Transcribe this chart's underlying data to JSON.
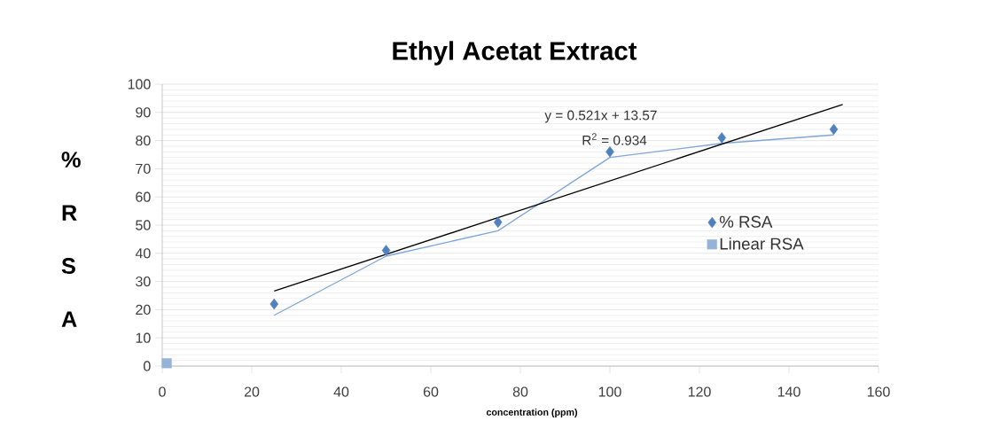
{
  "chart_data": {
    "type": "scatter",
    "title": "Ethyl Acetat Extract",
    "xlabel": "concentration (ppm)",
    "ylabel": "% R S A",
    "series": [
      {
        "name": "% RSA",
        "marker": "diamond",
        "color": "#4f81bd",
        "x": [
          25,
          50,
          75,
          100,
          125,
          150
        ],
        "values": [
          22,
          41,
          51,
          76,
          81,
          84
        ]
      },
      {
        "name": "Linear RSA",
        "marker": "square",
        "color": "#95b3d7",
        "x": [
          1
        ],
        "values": [
          1
        ]
      },
      {
        "type": "line",
        "marker": "none",
        "color": "#7ea6d8",
        "x": [
          25,
          50,
          75,
          100,
          125,
          150
        ],
        "values": [
          18,
          39,
          48,
          74,
          79,
          82
        ]
      },
      {
        "type": "line",
        "marker": "none",
        "color": "#000000",
        "x": [
          25,
          152
        ],
        "values": [
          26.6,
          92.8
        ]
      }
    ],
    "annotations": [
      "y = 0.521x + 13.57",
      "R$^{2}$ = 0.934"
    ],
    "xlim": [
      0,
      160
    ],
    "xticks": [
      0,
      20,
      40,
      60,
      80,
      100,
      120,
      140,
      160
    ],
    "ylim": [
      0,
      100
    ],
    "yticks": [
      0,
      10,
      20,
      30,
      40,
      50,
      60,
      70,
      80,
      90,
      100
    ],
    "grid": "y",
    "legend": "right"
  }
}
